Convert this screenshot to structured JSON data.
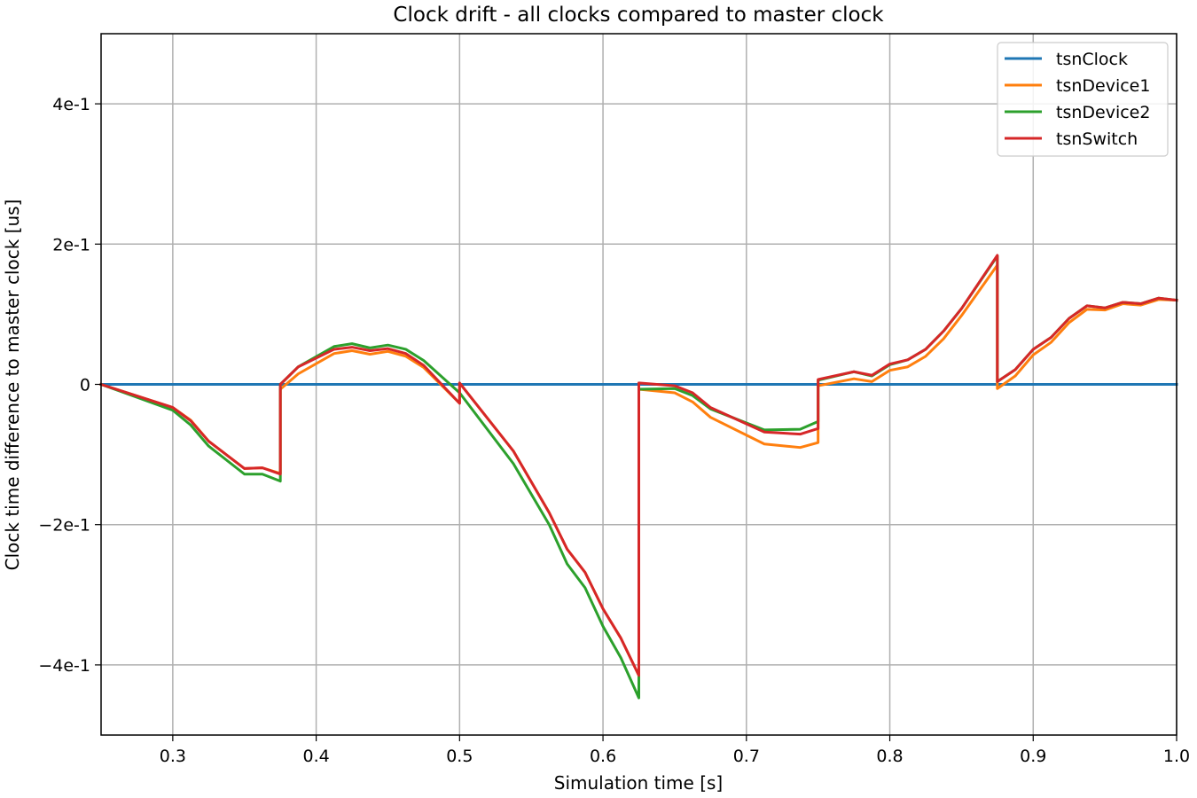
{
  "chart_data": {
    "type": "line",
    "title": "Clock drift - all clocks compared to master clock",
    "xlabel": "Simulation time [s]",
    "ylabel": "Clock time difference to master clock [us]",
    "xlim": [
      0.25,
      1.0
    ],
    "ylim": [
      -0.5,
      0.5
    ],
    "xticks": [
      0.3,
      0.4,
      0.5,
      0.6,
      0.7,
      0.8,
      0.9,
      1.0
    ],
    "xtick_labels": [
      "0.3",
      "0.4",
      "0.5",
      "0.6",
      "0.7",
      "0.8",
      "0.9",
      "1.0"
    ],
    "yticks": [
      -0.4,
      -0.2,
      0,
      0.2,
      0.4
    ],
    "ytick_labels": [
      "−4e-1",
      "−2e-1",
      "0",
      "2e-1",
      "4e-1"
    ],
    "grid": true,
    "legend_position": "top-right",
    "series": [
      {
        "name": "tsnClock",
        "color": "#1f77b4",
        "points": [
          [
            0.25,
            0.0
          ],
          [
            1.0,
            0.0
          ]
        ]
      },
      {
        "name": "tsnDevice1",
        "color": "#ff7f0e",
        "points": [
          [
            0.25,
            0.0
          ],
          [
            0.3,
            -0.033
          ],
          [
            0.3125,
            -0.051
          ],
          [
            0.325,
            -0.081
          ],
          [
            0.35,
            -0.12
          ],
          [
            0.3625,
            -0.119
          ],
          [
            0.375,
            -0.127
          ],
          [
            0.375,
            -0.007
          ],
          [
            0.3875,
            0.015
          ],
          [
            0.4125,
            0.044
          ],
          [
            0.425,
            0.048
          ],
          [
            0.4375,
            0.043
          ],
          [
            0.45,
            0.047
          ],
          [
            0.4625,
            0.04
          ],
          [
            0.475,
            0.024
          ],
          [
            0.5,
            -0.027
          ],
          [
            0.5,
            0.002
          ],
          [
            0.5375,
            -0.095
          ],
          [
            0.5625,
            -0.183
          ],
          [
            0.575,
            -0.235
          ],
          [
            0.5875,
            -0.268
          ],
          [
            0.6,
            -0.32
          ],
          [
            0.6125,
            -0.362
          ],
          [
            0.625,
            -0.415
          ],
          [
            0.625,
            -0.007
          ],
          [
            0.65,
            -0.012
          ],
          [
            0.6625,
            -0.025
          ],
          [
            0.675,
            -0.047
          ],
          [
            0.7125,
            -0.085
          ],
          [
            0.7375,
            -0.09
          ],
          [
            0.75,
            -0.083
          ],
          [
            0.75,
            -0.002
          ],
          [
            0.775,
            0.008
          ],
          [
            0.7875,
            0.004
          ],
          [
            0.8,
            0.02
          ],
          [
            0.8125,
            0.025
          ],
          [
            0.825,
            0.04
          ],
          [
            0.8375,
            0.065
          ],
          [
            0.85,
            0.098
          ],
          [
            0.875,
            0.17
          ],
          [
            0.875,
            -0.006
          ],
          [
            0.8875,
            0.012
          ],
          [
            0.9,
            0.042
          ],
          [
            0.9125,
            0.06
          ],
          [
            0.925,
            0.088
          ],
          [
            0.9375,
            0.107
          ],
          [
            0.95,
            0.106
          ],
          [
            0.9625,
            0.115
          ],
          [
            0.975,
            0.113
          ],
          [
            0.9875,
            0.121
          ],
          [
            1.0,
            0.12
          ]
        ]
      },
      {
        "name": "tsnDevice2",
        "color": "#2ca02c",
        "points": [
          [
            0.25,
            0.0
          ],
          [
            0.3,
            -0.037
          ],
          [
            0.3125,
            -0.058
          ],
          [
            0.325,
            -0.088
          ],
          [
            0.35,
            -0.128
          ],
          [
            0.3625,
            -0.128
          ],
          [
            0.375,
            -0.138
          ],
          [
            0.375,
            0.0
          ],
          [
            0.3875,
            0.025
          ],
          [
            0.4125,
            0.054
          ],
          [
            0.425,
            0.058
          ],
          [
            0.4375,
            0.052
          ],
          [
            0.45,
            0.056
          ],
          [
            0.4625,
            0.05
          ],
          [
            0.475,
            0.034
          ],
          [
            0.5,
            -0.012
          ],
          [
            0.5375,
            -0.113
          ],
          [
            0.5625,
            -0.2
          ],
          [
            0.575,
            -0.256
          ],
          [
            0.5875,
            -0.29
          ],
          [
            0.6,
            -0.345
          ],
          [
            0.6125,
            -0.39
          ],
          [
            0.625,
            -0.447
          ],
          [
            0.625,
            -0.007
          ],
          [
            0.65,
            -0.006
          ],
          [
            0.6625,
            -0.016
          ],
          [
            0.675,
            -0.035
          ],
          [
            0.7125,
            -0.065
          ],
          [
            0.7375,
            -0.064
          ],
          [
            0.75,
            -0.053
          ],
          [
            0.75,
            0.006
          ],
          [
            0.775,
            0.018
          ],
          [
            0.7875,
            0.012
          ],
          [
            0.8,
            0.028
          ],
          [
            0.8125,
            0.035
          ],
          [
            0.825,
            0.05
          ],
          [
            0.8375,
            0.076
          ],
          [
            0.85,
            0.108
          ],
          [
            0.875,
            0.183
          ],
          [
            0.875,
            0.004
          ],
          [
            0.8875,
            0.021
          ],
          [
            0.9,
            0.05
          ],
          [
            0.9125,
            0.067
          ],
          [
            0.925,
            0.094
          ],
          [
            0.9375,
            0.112
          ],
          [
            0.95,
            0.109
          ],
          [
            0.9625,
            0.117
          ],
          [
            0.975,
            0.115
          ],
          [
            0.9875,
            0.123
          ],
          [
            1.0,
            0.12
          ]
        ]
      },
      {
        "name": "tsnSwitch",
        "color": "#d62728",
        "points": [
          [
            0.25,
            0.0
          ],
          [
            0.3,
            -0.033
          ],
          [
            0.3125,
            -0.052
          ],
          [
            0.325,
            -0.081
          ],
          [
            0.35,
            -0.12
          ],
          [
            0.3625,
            -0.119
          ],
          [
            0.375,
            -0.128
          ],
          [
            0.375,
            0.0
          ],
          [
            0.3875,
            0.025
          ],
          [
            0.4125,
            0.05
          ],
          [
            0.425,
            0.053
          ],
          [
            0.4375,
            0.048
          ],
          [
            0.45,
            0.051
          ],
          [
            0.4625,
            0.044
          ],
          [
            0.475,
            0.027
          ],
          [
            0.5,
            -0.027
          ],
          [
            0.5,
            0.002
          ],
          [
            0.5375,
            -0.095
          ],
          [
            0.5625,
            -0.183
          ],
          [
            0.575,
            -0.235
          ],
          [
            0.5875,
            -0.268
          ],
          [
            0.6,
            -0.32
          ],
          [
            0.6125,
            -0.362
          ],
          [
            0.625,
            -0.415
          ],
          [
            0.625,
            0.002
          ],
          [
            0.65,
            -0.002
          ],
          [
            0.6625,
            -0.012
          ],
          [
            0.675,
            -0.033
          ],
          [
            0.7125,
            -0.068
          ],
          [
            0.7375,
            -0.071
          ],
          [
            0.75,
            -0.063
          ],
          [
            0.75,
            0.007
          ],
          [
            0.775,
            0.018
          ],
          [
            0.7875,
            0.013
          ],
          [
            0.8,
            0.029
          ],
          [
            0.8125,
            0.035
          ],
          [
            0.825,
            0.05
          ],
          [
            0.8375,
            0.076
          ],
          [
            0.85,
            0.108
          ],
          [
            0.875,
            0.184
          ],
          [
            0.875,
            0.004
          ],
          [
            0.8875,
            0.021
          ],
          [
            0.9,
            0.05
          ],
          [
            0.9125,
            0.067
          ],
          [
            0.925,
            0.094
          ],
          [
            0.9375,
            0.112
          ],
          [
            0.95,
            0.109
          ],
          [
            0.9625,
            0.117
          ],
          [
            0.975,
            0.115
          ],
          [
            0.9875,
            0.123
          ],
          [
            1.0,
            0.12
          ]
        ]
      }
    ]
  }
}
